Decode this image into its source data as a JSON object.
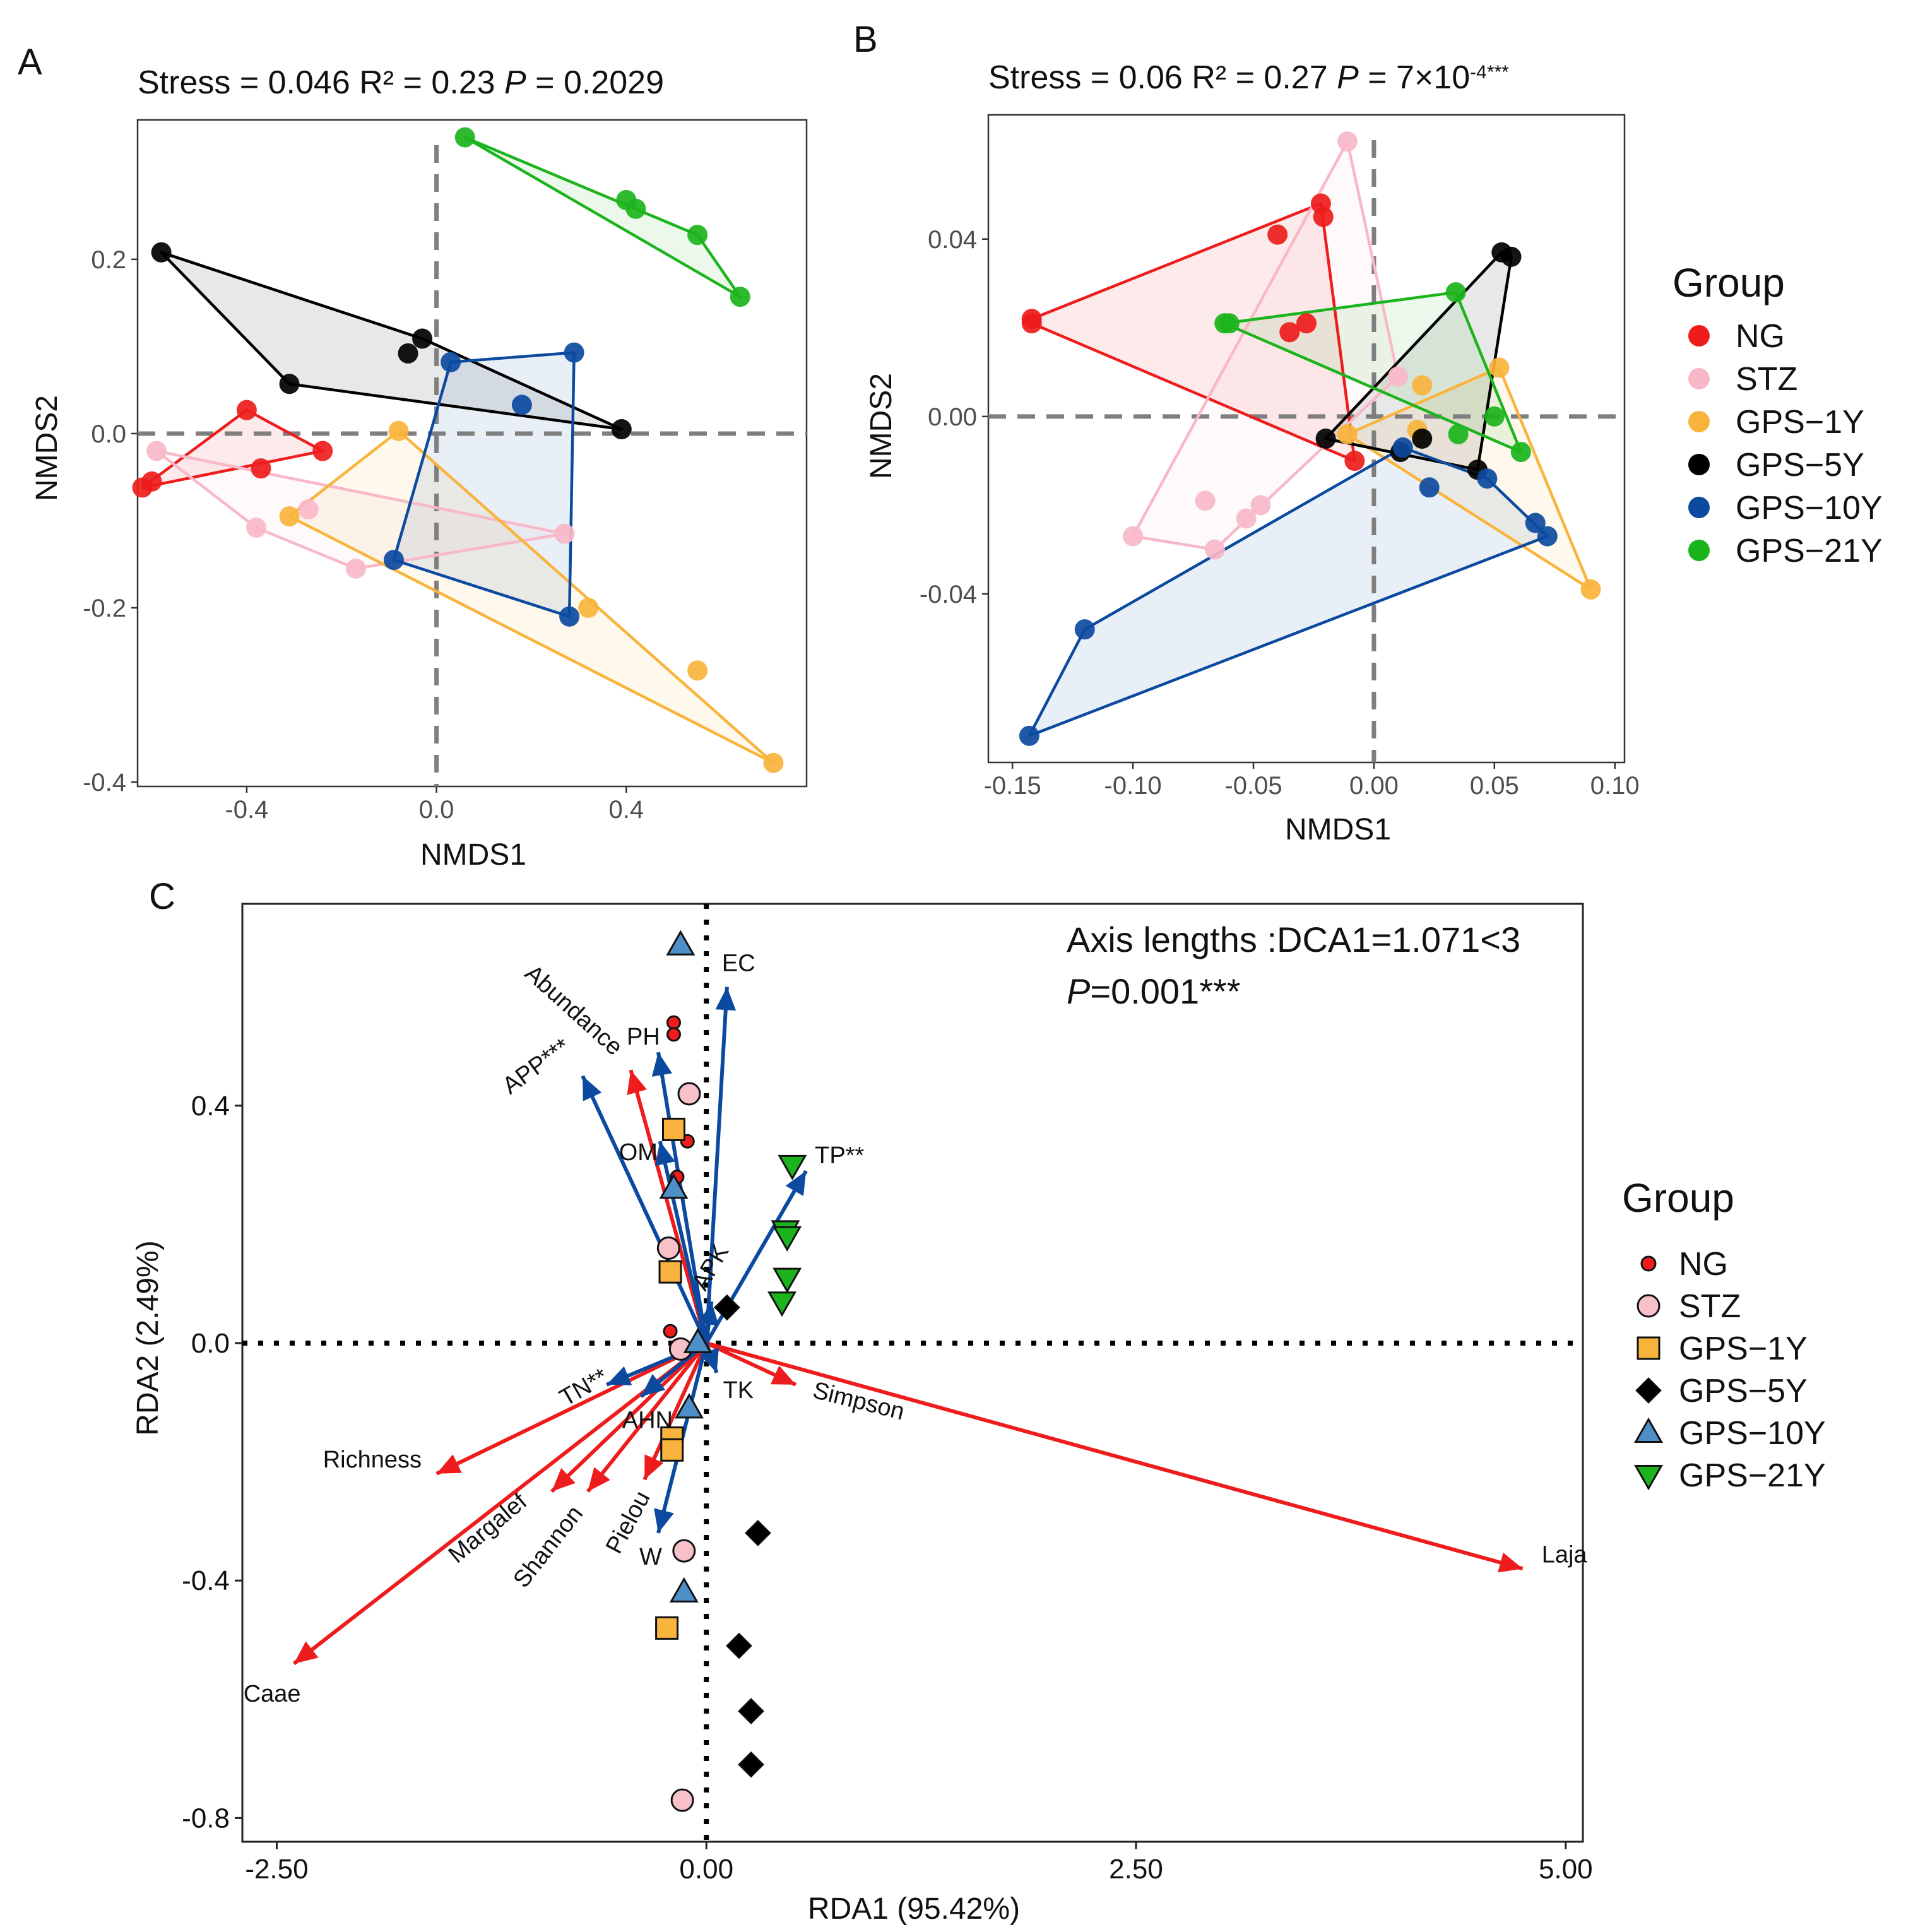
{
  "groups": [
    "NG",
    "STZ",
    "GPS−1Y",
    "GPS−5Y",
    "GPS−10Y",
    "GPS−21Y"
  ],
  "colors": {
    "NG": "#ee1c1c",
    "STZ": "#f8b8c8",
    "GPS-1Y": "#f8b43c",
    "GPS-5Y": "#000000",
    "GPS-10Y": "#0c4aa0",
    "GPS-21Y": "#1cb41c",
    "env_arrow": "#0c4aa0",
    "div_arrow": "#ee1c1c"
  },
  "panels": {
    "A": {
      "label": "A",
      "title": {
        "prefix": "Stress = 0.046 R² = 0.23 ",
        "p": "P",
        "suffix": " = 0.2029",
        "sup": ""
      },
      "xlabel": "NMDS1",
      "ylabel": "NMDS2"
    },
    "B": {
      "label": "B",
      "title": {
        "prefix": "Stress = 0.06 R² = 0.27 ",
        "p": "P",
        "suffix": " = 7×10",
        "sup": "-4***"
      },
      "xlabel": "NMDS1",
      "ylabel": "NMDS2"
    },
    "C": {
      "label": "C",
      "xlabel": "RDA1 (95.42%)",
      "ylabel": "RDA2 (2.49%)",
      "note_line1": "Axis lengths :DCA1=1.071<3",
      "note_line2_p": "P",
      "note_line2_rest": "=0.001***"
    }
  },
  "legend_ab_title": "Group",
  "legend_c_title": "Group",
  "chart_data": [
    {
      "type": "scatter",
      "panel": "A",
      "title": "Stress = 0.046 R² = 0.23 P = 0.2029",
      "xlabel": "NMDS1",
      "ylabel": "NMDS2",
      "xlim": [
        -0.63,
        0.78
      ],
      "ylim": [
        -0.405,
        0.36
      ],
      "xticks": [
        -0.4,
        0.0,
        0.4
      ],
      "xtick_labels": [
        "-0.4",
        "0.0",
        "0.4"
      ],
      "yticks": [
        -0.4,
        -0.2,
        0.0,
        0.2
      ],
      "ytick_labels": [
        "-0.4",
        "-0.2",
        "0.0",
        "0.2"
      ],
      "reference_lines": {
        "x": 0,
        "y": 0
      },
      "series": [
        {
          "name": "NG",
          "points": [
            [
              -0.62,
              -0.062
            ],
            [
              -0.6,
              -0.055
            ],
            [
              -0.4,
              0.027
            ],
            [
              -0.37,
              -0.04
            ],
            [
              -0.24,
              -0.02
            ]
          ],
          "hull": [
            [
              -0.62,
              -0.062
            ],
            [
              -0.24,
              -0.02
            ],
            [
              -0.4,
              0.027
            ]
          ]
        },
        {
          "name": "STZ",
          "points": [
            [
              -0.59,
              -0.02
            ],
            [
              -0.38,
              -0.108
            ],
            [
              -0.27,
              -0.087
            ],
            [
              -0.17,
              -0.155
            ],
            [
              0.27,
              -0.115
            ]
          ],
          "hull": [
            [
              -0.59,
              -0.02
            ],
            [
              -0.38,
              -0.108
            ],
            [
              -0.17,
              -0.155
            ],
            [
              0.27,
              -0.115
            ]
          ]
        },
        {
          "name": "GPS-1Y",
          "points": [
            [
              -0.31,
              -0.095
            ],
            [
              -0.08,
              0.003
            ],
            [
              0.32,
              -0.2
            ],
            [
              0.55,
              -0.272
            ],
            [
              0.71,
              -0.378
            ]
          ],
          "hull": [
            [
              -0.31,
              -0.095
            ],
            [
              -0.08,
              0.003
            ],
            [
              0.71,
              -0.378
            ]
          ]
        },
        {
          "name": "GPS-5Y",
          "points": [
            [
              -0.58,
              0.208
            ],
            [
              -0.31,
              0.057
            ],
            [
              -0.06,
              0.092
            ],
            [
              -0.03,
              0.109
            ],
            [
              0.39,
              0.005
            ]
          ],
          "hull": [
            [
              -0.58,
              0.208
            ],
            [
              -0.03,
              0.109
            ],
            [
              0.39,
              0.005
            ],
            [
              -0.31,
              0.057
            ]
          ]
        },
        {
          "name": "GPS-10Y",
          "points": [
            [
              -0.09,
              -0.145
            ],
            [
              0.03,
              0.082
            ],
            [
              0.18,
              0.033
            ],
            [
              0.28,
              -0.21
            ],
            [
              0.29,
              0.093
            ]
          ],
          "hull": [
            [
              -0.09,
              -0.145
            ],
            [
              0.03,
              0.082
            ],
            [
              0.29,
              0.093
            ],
            [
              0.28,
              -0.21
            ]
          ]
        },
        {
          "name": "GPS-21Y",
          "points": [
            [
              0.06,
              0.34
            ],
            [
              0.4,
              0.268
            ],
            [
              0.42,
              0.258
            ],
            [
              0.55,
              0.228
            ],
            [
              0.64,
              0.157
            ]
          ],
          "hull": [
            [
              0.06,
              0.34
            ],
            [
              0.55,
              0.228
            ],
            [
              0.64,
              0.157
            ]
          ]
        }
      ]
    },
    {
      "type": "scatter",
      "panel": "B",
      "title": "Stress = 0.06 R² = 0.27 P = 7×10^-4***",
      "xlabel": "NMDS1",
      "ylabel": "NMDS2",
      "xlim": [
        -0.16,
        0.104
      ],
      "ylim": [
        -0.078,
        0.068
      ],
      "xticks": [
        -0.15,
        -0.1,
        -0.05,
        0.0,
        0.05,
        0.1
      ],
      "xtick_labels": [
        "-0.15",
        "-0.10",
        "-0.05",
        "0.00",
        "0.05",
        "0.10"
      ],
      "yticks": [
        -0.04,
        0.0,
        0.04
      ],
      "ytick_labels": [
        "-0.04",
        "0.00",
        "0.04"
      ],
      "reference_lines": {
        "x": 0,
        "y": 0
      },
      "series": [
        {
          "name": "NG",
          "points": [
            [
              -0.142,
              0.021
            ],
            [
              -0.142,
              0.022
            ],
            [
              -0.04,
              0.041
            ],
            [
              -0.035,
              0.019
            ],
            [
              -0.028,
              0.021
            ],
            [
              -0.022,
              0.048
            ],
            [
              -0.021,
              0.045
            ],
            [
              -0.008,
              -0.01
            ]
          ],
          "hull": [
            [
              -0.142,
              0.022
            ],
            [
              -0.022,
              0.048
            ],
            [
              -0.008,
              -0.01
            ],
            [
              -0.142,
              0.021
            ]
          ]
        },
        {
          "name": "STZ",
          "points": [
            [
              -0.1,
              -0.027
            ],
            [
              -0.07,
              -0.019
            ],
            [
              -0.066,
              -0.03
            ],
            [
              -0.053,
              -0.023
            ],
            [
              -0.047,
              -0.02
            ],
            [
              -0.011,
              0.062
            ],
            [
              0.01,
              0.009
            ]
          ],
          "hull": [
            [
              -0.1,
              -0.027
            ],
            [
              -0.011,
              0.062
            ],
            [
              0.01,
              0.009
            ],
            [
              -0.066,
              -0.03
            ]
          ]
        },
        {
          "name": "GPS-1Y",
          "points": [
            [
              -0.011,
              -0.004
            ],
            [
              0.018,
              -0.003
            ],
            [
              0.02,
              0.007
            ],
            [
              0.052,
              0.011
            ],
            [
              0.09,
              -0.039
            ]
          ],
          "hull": [
            [
              -0.011,
              -0.004
            ],
            [
              0.052,
              0.011
            ],
            [
              0.09,
              -0.039
            ]
          ]
        },
        {
          "name": "GPS-5Y",
          "points": [
            [
              -0.02,
              -0.005
            ],
            [
              0.011,
              -0.008
            ],
            [
              0.02,
              -0.005
            ],
            [
              0.043,
              -0.012
            ],
            [
              0.053,
              0.037
            ],
            [
              0.057,
              0.036
            ]
          ],
          "hull": [
            [
              -0.02,
              -0.005
            ],
            [
              0.053,
              0.037
            ],
            [
              0.057,
              0.036
            ],
            [
              0.043,
              -0.012
            ]
          ]
        },
        {
          "name": "GPS-10Y",
          "points": [
            [
              -0.143,
              -0.072
            ],
            [
              -0.12,
              -0.048
            ],
            [
              0.012,
              -0.007
            ],
            [
              0.023,
              -0.016
            ],
            [
              0.047,
              -0.014
            ],
            [
              0.067,
              -0.024
            ],
            [
              0.072,
              -0.027
            ]
          ],
          "hull": [
            [
              -0.143,
              -0.072
            ],
            [
              -0.12,
              -0.048
            ],
            [
              0.012,
              -0.007
            ],
            [
              0.047,
              -0.014
            ],
            [
              0.072,
              -0.027
            ]
          ]
        },
        {
          "name": "GPS-21Y",
          "points": [
            [
              -0.062,
              0.021
            ],
            [
              -0.06,
              0.021
            ],
            [
              0.034,
              0.028
            ],
            [
              0.035,
              -0.004
            ],
            [
              0.05,
              0.0
            ],
            [
              0.061,
              -0.008
            ]
          ],
          "hull": [
            [
              -0.062,
              0.021
            ],
            [
              0.034,
              0.028
            ],
            [
              0.061,
              -0.008
            ]
          ]
        }
      ]
    },
    {
      "type": "scatter",
      "panel": "C",
      "title": "",
      "xlabel": "RDA1 (95.42%)",
      "ylabel": "RDA2 (2.49%)",
      "xlim": [
        -2.7,
        5.1
      ],
      "ylim": [
        -0.84,
        0.74
      ],
      "xticks": [
        -2.5,
        0.0,
        2.5,
        5.0
      ],
      "xtick_labels": [
        "-2.50",
        "0.00",
        "2.50",
        "5.00"
      ],
      "yticks": [
        -0.8,
        -0.4,
        0.0,
        0.4
      ],
      "ytick_labels": [
        "-0.8",
        "-0.4",
        "0.0",
        "0.4"
      ],
      "reference_lines": {
        "x": 0,
        "y": 0
      },
      "annotations": [
        "Axis lengths :DCA1=1.071<3",
        "P=0.001***"
      ],
      "series": [
        {
          "name": "NG",
          "marker": "circle",
          "points": [
            [
              -0.19,
              0.54
            ],
            [
              -0.19,
              0.52
            ],
            [
              -0.11,
              0.34
            ],
            [
              -0.21,
              0.02
            ],
            [
              -0.17,
              0.28
            ]
          ]
        },
        {
          "name": "STZ",
          "marker": "circle",
          "points": [
            [
              -0.1,
              0.42
            ],
            [
              -0.22,
              0.16
            ],
            [
              -0.15,
              -0.01
            ],
            [
              -0.13,
              -0.35
            ],
            [
              -0.14,
              -0.77
            ]
          ]
        },
        {
          "name": "GPS-1Y",
          "marker": "square",
          "points": [
            [
              -0.19,
              0.36
            ],
            [
              -0.21,
              0.12
            ],
            [
              -0.2,
              -0.16
            ],
            [
              -0.2,
              -0.18
            ],
            [
              -0.23,
              -0.48
            ]
          ]
        },
        {
          "name": "GPS-5Y",
          "marker": "diamond",
          "points": [
            [
              0.12,
              0.06
            ],
            [
              0.3,
              -0.32
            ],
            [
              0.19,
              -0.51
            ],
            [
              0.26,
              -0.62
            ],
            [
              0.26,
              -0.71
            ]
          ]
        },
        {
          "name": "GPS-10Y",
          "marker": "triangle-up",
          "points": [
            [
              -0.15,
              0.67
            ],
            [
              -0.19,
              0.26
            ],
            [
              -0.05,
              0.0
            ],
            [
              -0.1,
              -0.11
            ],
            [
              -0.13,
              -0.42
            ]
          ]
        },
        {
          "name": "GPS-21Y",
          "marker": "triangle-down",
          "points": [
            [
              0.5,
              0.3
            ],
            [
              0.46,
              0.19
            ],
            [
              0.47,
              0.18
            ],
            [
              0.47,
              0.11
            ],
            [
              0.44,
              0.07
            ]
          ]
        }
      ],
      "vectors_environment": [
        {
          "name": "EC",
          "x": 0.12,
          "y": 0.6
        },
        {
          "name": "PH",
          "x": -0.28,
          "y": 0.49
        },
        {
          "name": "APP***",
          "x": -0.72,
          "y": 0.45
        },
        {
          "name": "OM",
          "x": -0.27,
          "y": 0.34
        },
        {
          "name": "TP**",
          "x": 0.58,
          "y": 0.29
        },
        {
          "name": "APK",
          "x": 0.03,
          "y": 0.07
        },
        {
          "name": "TN**",
          "x": -0.58,
          "y": -0.07
        },
        {
          "name": "AHN",
          "x": -0.38,
          "y": -0.09
        },
        {
          "name": "TK",
          "x": 0.06,
          "y": -0.05
        },
        {
          "name": "W",
          "x": -0.28,
          "y": -0.32
        }
      ],
      "vectors_diversity": [
        {
          "name": "Abundance",
          "x": -0.44,
          "y": 0.46
        },
        {
          "name": "Simpson",
          "x": 0.52,
          "y": -0.07
        },
        {
          "name": "Laja",
          "x": 4.75,
          "y": -0.38
        },
        {
          "name": "Richness",
          "x": -1.57,
          "y": -0.22
        },
        {
          "name": "Margalef",
          "x": -0.9,
          "y": -0.25
        },
        {
          "name": "Shannon",
          "x": -0.69,
          "y": -0.25
        },
        {
          "name": "Pielou",
          "x": -0.36,
          "y": -0.23
        },
        {
          "name": "Caae",
          "x": -2.4,
          "y": -0.54
        }
      ]
    }
  ]
}
